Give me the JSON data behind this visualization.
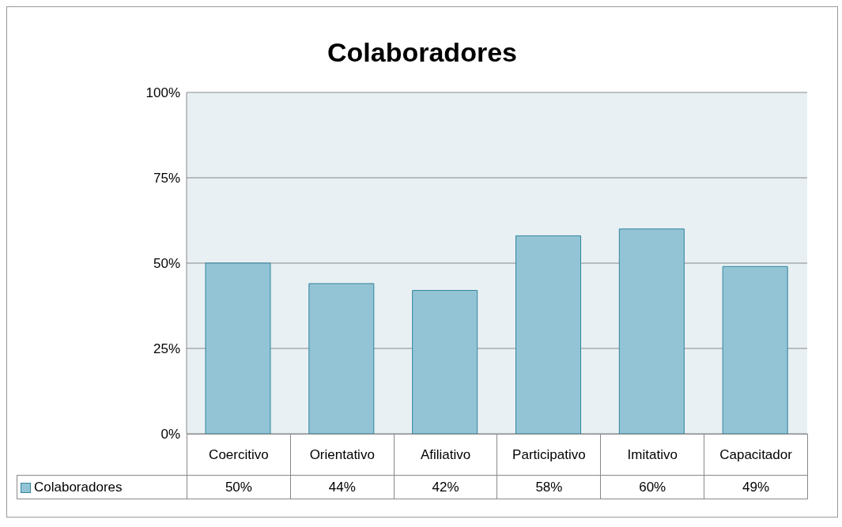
{
  "chart_data": {
    "type": "bar",
    "title": "Colaboradores",
    "categories": [
      "Coercitivo",
      "Orientativo",
      "Afiliativo",
      "Participativo",
      "Imitativo",
      "Capacitador"
    ],
    "series": [
      {
        "name": "Colaboradores",
        "color": "#93c4d6",
        "values": [
          50,
          44,
          42,
          58,
          60,
          49
        ],
        "value_labels": [
          "50%",
          "44%",
          "42%",
          "58%",
          "60%",
          "49%"
        ]
      }
    ],
    "ylim": [
      0,
      100
    ],
    "yticks": [
      {
        "value": 0,
        "label": "0%"
      },
      {
        "value": 25,
        "label": "25%"
      },
      {
        "value": 50,
        "label": "50%"
      },
      {
        "value": 75,
        "label": "75%"
      },
      {
        "value": 100,
        "label": "100%"
      }
    ],
    "grid": "y",
    "legend": "bottom"
  }
}
